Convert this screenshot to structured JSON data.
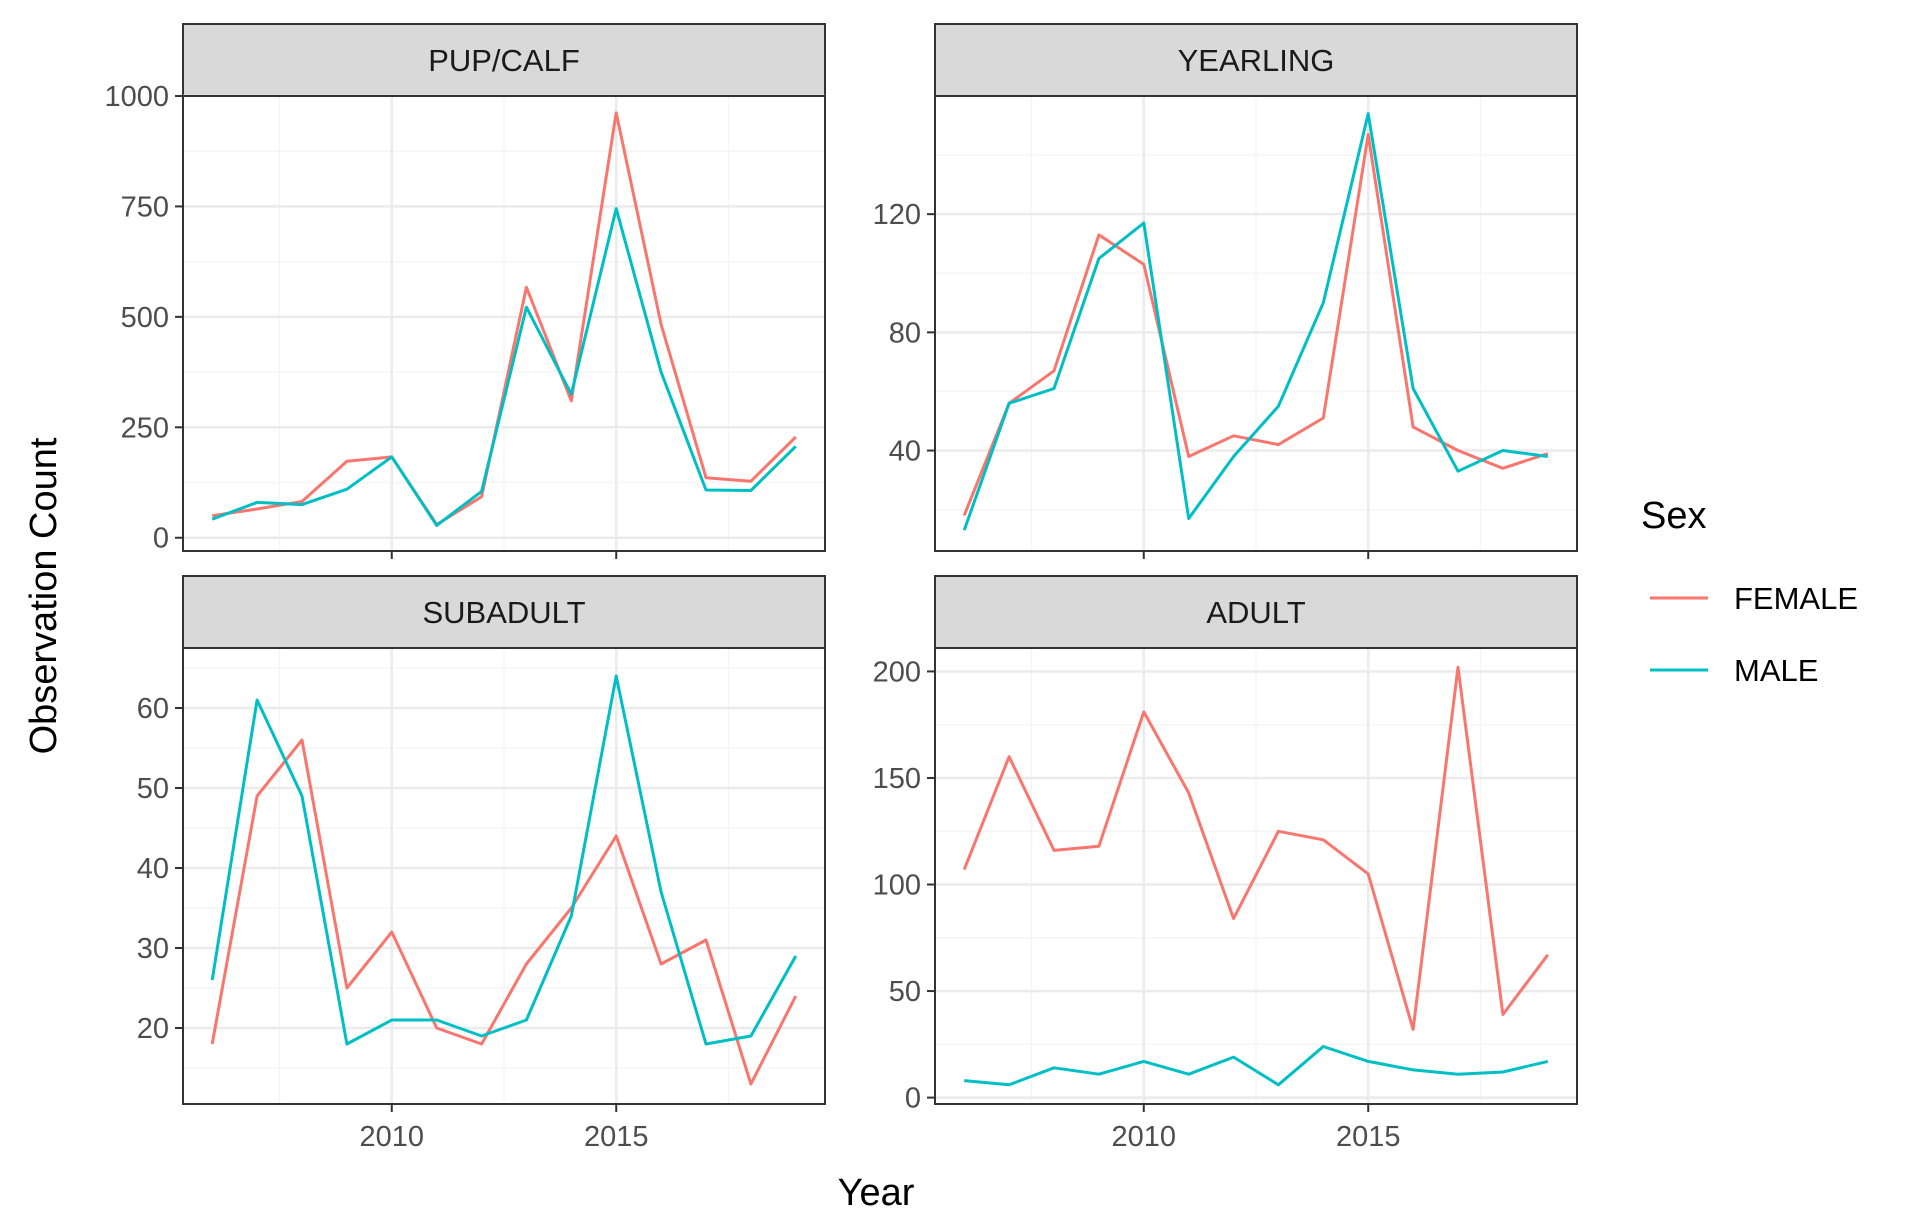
{
  "figure": {
    "xlabel": "Year",
    "ylabel": "Observation Count"
  },
  "legend": {
    "title": "Sex",
    "position": "right",
    "entries": [
      {
        "label": "FEMALE",
        "color": "#F8766D"
      },
      {
        "label": "MALE",
        "color": "#00BFC4"
      }
    ]
  },
  "colors": {
    "FEMALE": "#F8766D",
    "MALE": "#00BFC4",
    "strip_bg": "#D9D9D9",
    "panel_border": "#333333",
    "grid_major": "#EBEBEB",
    "grid_minor": "#F5F5F5"
  },
  "chart_data": [
    {
      "type": "line",
      "title": "PUP/CALF",
      "xlabel": "Year",
      "ylabel": "Observation Count",
      "grid": true,
      "x": [
        2006,
        2007,
        2008,
        2009,
        2010,
        2011,
        2012,
        2013,
        2014,
        2015,
        2016,
        2017,
        2018,
        2019
      ],
      "xlim": [
        2005.35,
        2019.65
      ],
      "xticks": [
        2010,
        2015
      ],
      "ylim": [
        -30,
        1000
      ],
      "yticks": [
        0,
        250,
        500,
        750,
        1000
      ],
      "series": [
        {
          "name": "FEMALE",
          "values": [
            50,
            65,
            82,
            173,
            183,
            30,
            93,
            567,
            310,
            962,
            483,
            136,
            128,
            228
          ]
        },
        {
          "name": "MALE",
          "values": [
            42,
            80,
            75,
            110,
            183,
            28,
            105,
            522,
            325,
            745,
            375,
            108,
            107,
            207
          ]
        }
      ]
    },
    {
      "type": "line",
      "title": "YEARLING",
      "xlabel": "Year",
      "ylabel": "Observation Count",
      "grid": true,
      "x": [
        2006,
        2007,
        2008,
        2009,
        2010,
        2011,
        2012,
        2013,
        2014,
        2015,
        2016,
        2017,
        2018,
        2019
      ],
      "xlim": [
        2005.35,
        2019.65
      ],
      "xticks": [
        2010,
        2015
      ],
      "ylim": [
        6,
        160
      ],
      "yticks": [
        40,
        80,
        120
      ],
      "series": [
        {
          "name": "FEMALE",
          "values": [
            18,
            56,
            67,
            113,
            103,
            38,
            45,
            42,
            51,
            147,
            48,
            40,
            34,
            39
          ]
        },
        {
          "name": "MALE",
          "values": [
            13,
            56,
            61,
            105,
            117,
            17,
            38,
            55,
            90,
            154,
            61,
            33,
            40,
            38
          ]
        }
      ]
    },
    {
      "type": "line",
      "title": "SUBADULT",
      "xlabel": "Year",
      "ylabel": "Observation Count",
      "grid": true,
      "x": [
        2006,
        2007,
        2008,
        2009,
        2010,
        2011,
        2012,
        2013,
        2014,
        2015,
        2016,
        2017,
        2018,
        2019
      ],
      "xlim": [
        2005.35,
        2019.65
      ],
      "xticks": [
        2010,
        2015
      ],
      "ylim": [
        10.5,
        67.5
      ],
      "yticks": [
        20,
        30,
        40,
        50,
        60
      ],
      "series": [
        {
          "name": "FEMALE",
          "values": [
            18,
            49,
            56,
            25,
            32,
            20,
            18,
            28,
            35,
            44,
            28,
            31,
            13,
            24
          ]
        },
        {
          "name": "MALE",
          "values": [
            26,
            61,
            49,
            18,
            21,
            21,
            19,
            21,
            34,
            64,
            37,
            18,
            19,
            29
          ]
        }
      ]
    },
    {
      "type": "line",
      "title": "ADULT",
      "xlabel": "Year",
      "ylabel": "Observation Count",
      "grid": true,
      "x": [
        2006,
        2007,
        2008,
        2009,
        2010,
        2011,
        2012,
        2013,
        2014,
        2015,
        2016,
        2017,
        2018,
        2019
      ],
      "xlim": [
        2005.35,
        2019.65
      ],
      "xticks": [
        2010,
        2015
      ],
      "ylim": [
        -3,
        211
      ],
      "yticks": [
        0,
        50,
        100,
        150,
        200
      ],
      "series": [
        {
          "name": "FEMALE",
          "values": [
            107,
            160,
            116,
            118,
            181,
            143,
            84,
            125,
            121,
            105,
            32,
            202,
            39,
            67
          ]
        },
        {
          "name": "MALE",
          "values": [
            8,
            6,
            14,
            11,
            17,
            11,
            19,
            6,
            24,
            17,
            13,
            11,
            12,
            17
          ]
        }
      ]
    }
  ]
}
